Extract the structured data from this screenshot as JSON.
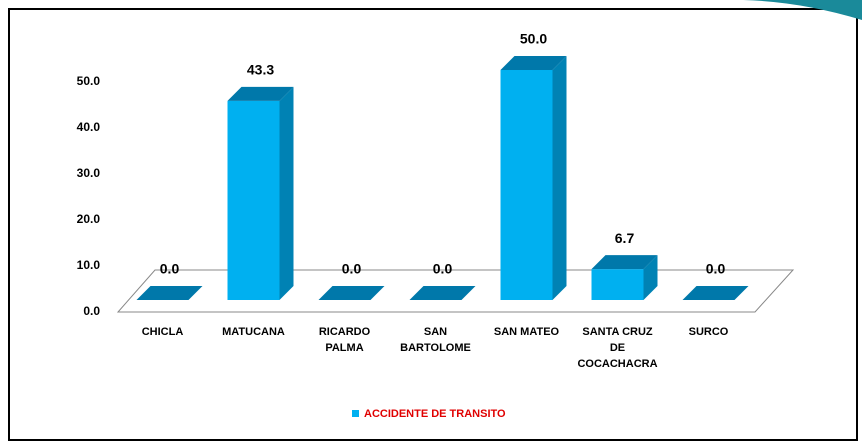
{
  "chart_data": {
    "type": "bar3d",
    "categories": [
      "CHICLA",
      "MATUCANA",
      "RICARDO\nPALMA",
      "SAN\nBARTOLOME",
      "SAN MATEO",
      "SANTA CRUZ\nDE\nCOCACHACRA",
      "SURCO"
    ],
    "series": [
      {
        "name": "ACCIDENTE DE TRANSITO",
        "color": "#00b0f0",
        "values": [
          0,
          43.3,
          0,
          0,
          50,
          6.7,
          0
        ],
        "value_labels": [
          "0.0",
          "43.3",
          "0.0",
          "0.0",
          "50.0",
          "6.7",
          "0.0"
        ]
      }
    ],
    "ylim": [
      0,
      50
    ],
    "yticks": [
      {
        "value": 0,
        "label": "0.0"
      },
      {
        "value": 10,
        "label": "10.0"
      },
      {
        "value": 20,
        "label": "20.0"
      },
      {
        "value": 30,
        "label": "30.0"
      },
      {
        "value": 40,
        "label": "40.0"
      },
      {
        "value": 50,
        "label": "50.0"
      }
    ],
    "legend": "bottom"
  }
}
